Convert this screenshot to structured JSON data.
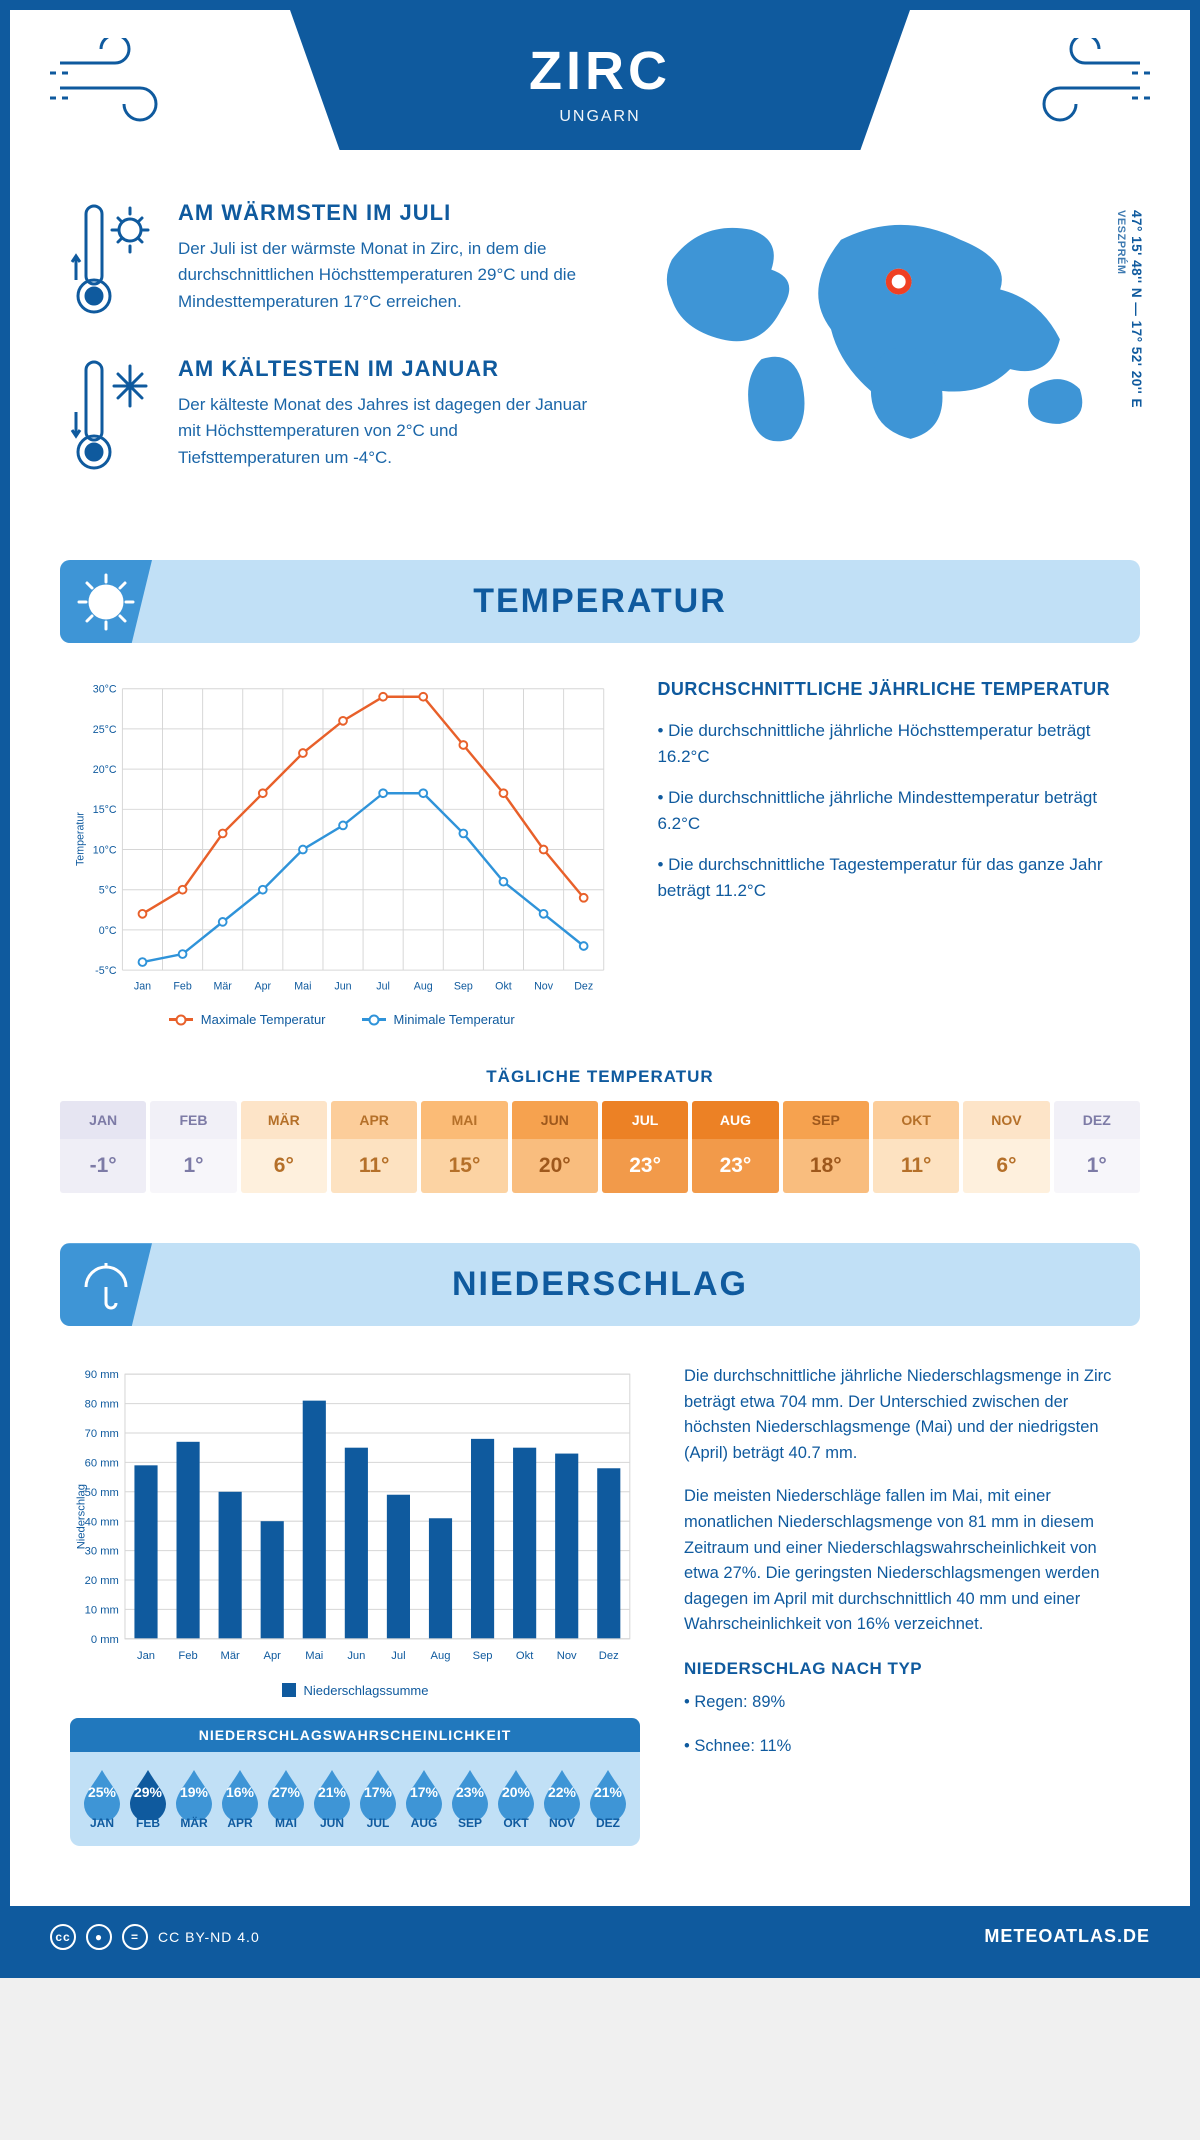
{
  "header": {
    "title": "ZIRC",
    "subtitle": "UNGARN"
  },
  "coords": {
    "lat": "47° 15' 48'' N",
    "lon": "17° 52' 20'' E",
    "region": "VESZPRÉM"
  },
  "facts": {
    "warm": {
      "title": "AM WÄRMSTEN IM JULI",
      "text": "Der Juli ist der wärmste Monat in Zirc, in dem die durchschnittlichen Höchsttemperaturen 29°C und die Mindesttemperaturen 17°C erreichen."
    },
    "cold": {
      "title": "AM KÄLTESTEN IM JANUAR",
      "text": "Der kälteste Monat des Jahres ist dagegen der Januar mit Höchsttemperaturen von 2°C und Tiefsttemperaturen um -4°C."
    }
  },
  "sections": {
    "temp": "TEMPERATUR",
    "precip": "NIEDERSCHLAG"
  },
  "months": [
    "Jan",
    "Feb",
    "Mär",
    "Apr",
    "Mai",
    "Jun",
    "Jul",
    "Aug",
    "Sep",
    "Okt",
    "Nov",
    "Dez"
  ],
  "months_upper": [
    "JAN",
    "FEB",
    "MÄR",
    "APR",
    "MAI",
    "JUN",
    "JUL",
    "AUG",
    "SEP",
    "OKT",
    "NOV",
    "DEZ"
  ],
  "temp_chart": {
    "type": "line",
    "ylabel": "Temperatur",
    "ylim": [
      -5,
      30
    ],
    "ytick_step": 5,
    "y_suffix": "°C",
    "series": [
      {
        "name": "Maximale Temperatur",
        "color": "#e8602a",
        "values": [
          2,
          5,
          12,
          17,
          22,
          26,
          29,
          29,
          23,
          17,
          10,
          4
        ]
      },
      {
        "name": "Minimale Temperatur",
        "color": "#2f93d9",
        "values": [
          -4,
          -3,
          1,
          5,
          10,
          13,
          17,
          17,
          12,
          6,
          2,
          -2
        ]
      }
    ],
    "grid_color": "#d6d6d6",
    "background": "#ffffff",
    "line_width": 2.5,
    "marker": "circle"
  },
  "temp_info": {
    "heading": "DURCHSCHNITTLICHE JÄHRLICHE TEMPERATUR",
    "bullets": [
      "• Die durchschnittliche jährliche Höchsttemperatur beträgt 16.2°C",
      "• Die durchschnittliche jährliche Mindesttemperatur beträgt 6.2°C",
      "• Die durchschnittliche Tagestemperatur für das ganze Jahr beträgt 11.2°C"
    ]
  },
  "daily": {
    "heading": "TÄGLICHE TEMPERATUR",
    "values": [
      "-1°",
      "1°",
      "6°",
      "11°",
      "15°",
      "20°",
      "23°",
      "23°",
      "18°",
      "11°",
      "6°",
      "1°"
    ],
    "head_colors": [
      "#e6e5f2",
      "#f1f0f7",
      "#fde4c8",
      "#fccd9a",
      "#fbbb76",
      "#f6a24f",
      "#ec8125",
      "#ec8125",
      "#f6a24f",
      "#fccd9a",
      "#fde4c8",
      "#f1f0f7"
    ],
    "val_colors": [
      "#efeef6",
      "#f7f6fa",
      "#fef0dd",
      "#fde2c1",
      "#fcd3a3",
      "#f9bd7e",
      "#f29a4a",
      "#f29a4a",
      "#f9bd7e",
      "#fde2c1",
      "#fef0dd",
      "#f7f6fa"
    ],
    "text_colors": [
      "#7d7ba6",
      "#7d7ba6",
      "#b57029",
      "#b57029",
      "#b57029",
      "#9e581c",
      "#ffffff",
      "#ffffff",
      "#9e581c",
      "#b57029",
      "#b57029",
      "#7d7ba6"
    ]
  },
  "precip_chart": {
    "type": "bar",
    "ylabel": "Niederschlag",
    "legend": "Niederschlagssumme",
    "ylim": [
      0,
      90
    ],
    "ytick_step": 10,
    "y_suffix": " mm",
    "values": [
      59,
      67,
      50,
      40,
      81,
      65,
      49,
      41,
      68,
      65,
      63,
      58
    ],
    "bar_color": "#0f5a9e",
    "grid_color": "#d6d6d6",
    "bar_width": 0.55
  },
  "precip_text": {
    "p1": "Die durchschnittliche jährliche Niederschlagsmenge in Zirc beträgt etwa 704 mm. Der Unterschied zwischen der höchsten Niederschlagsmenge (Mai) und der niedrigsten (April) beträgt 40.7 mm.",
    "p2": "Die meisten Niederschläge fallen im Mai, mit einer monatlichen Niederschlagsmenge von 81 mm in diesem Zeitraum und einer Niederschlagswahrscheinlichkeit von etwa 27%. Die geringsten Niederschlagsmengen werden dagegen im April mit durchschnittlich 40 mm und einer Wahrscheinlichkeit von 16% verzeichnet.",
    "type_heading": "NIEDERSCHLAG NACH TYP",
    "type_bullets": [
      "• Regen: 89%",
      "• Schnee: 11%"
    ]
  },
  "precip_prob": {
    "title": "NIEDERSCHLAGSWAHRSCHEINLICHKEIT",
    "values": [
      25,
      29,
      19,
      16,
      27,
      21,
      17,
      17,
      23,
      20,
      22,
      21
    ],
    "drop_light": "#3e95d6",
    "drop_dark": "#0f5a9e"
  },
  "footer": {
    "license": "CC BY-ND 4.0",
    "site": "METEOATLAS.DE"
  },
  "palette": {
    "primary": "#0f5a9e",
    "section_bg": "#c1e0f6",
    "accent": "#3e95d6",
    "map_marker": "#ef4023"
  }
}
